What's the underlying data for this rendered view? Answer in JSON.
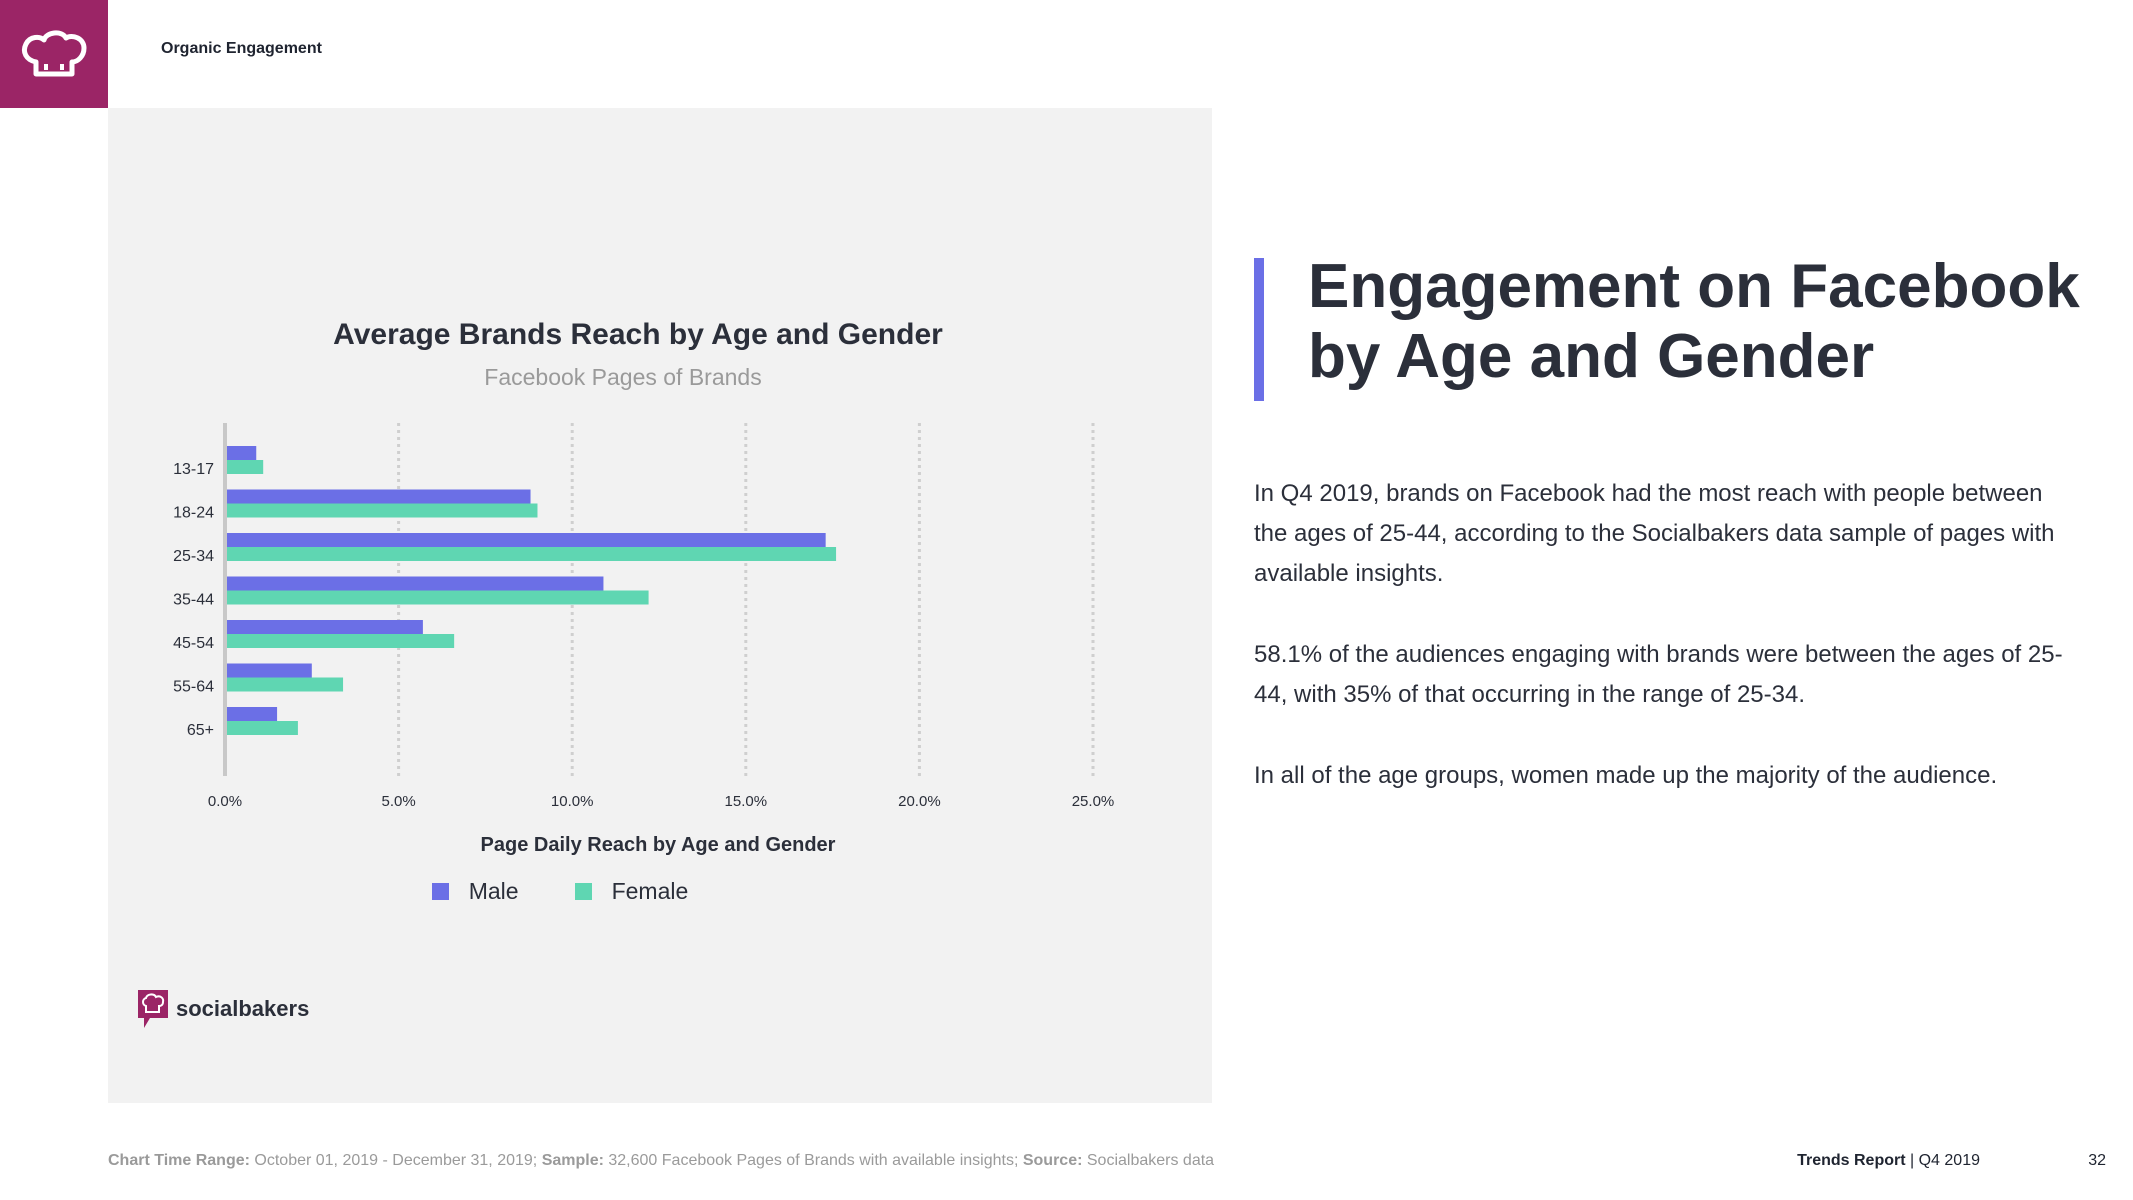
{
  "header": {
    "section_title": "Organic Engagement"
  },
  "brand": {
    "logo_icon": "chef-hat-icon",
    "logo_color": "#9b2566",
    "name": "socialbakers"
  },
  "chart_data": {
    "type": "bar",
    "orientation": "horizontal",
    "title": "Average Brands Reach by Age and Gender",
    "subtitle": "Facebook Pages of Brands",
    "xlabel": "Page Daily Reach by Age and Gender",
    "ylabel": "",
    "categories": [
      "13-17",
      "18-24",
      "25-34",
      "35-44",
      "45-54",
      "55-64",
      "65+"
    ],
    "series": [
      {
        "name": "Male",
        "color": "#6b6fe6",
        "values": [
          0.9,
          8.8,
          17.3,
          10.9,
          5.7,
          2.5,
          1.5
        ]
      },
      {
        "name": "Female",
        "color": "#5fd6b2",
        "values": [
          1.1,
          9.0,
          17.6,
          12.2,
          6.6,
          3.4,
          2.1
        ]
      }
    ],
    "xlim": [
      0,
      25
    ],
    "x_ticks": [
      "0.0%",
      "5.0%",
      "10.0%",
      "15.0%",
      "20.0%",
      "25.0%"
    ],
    "grid": "vertical-dotted",
    "legend": "bottom-center"
  },
  "heading": {
    "line1": "Engagement on Facebook",
    "line2": "by Age and Gender"
  },
  "body": {
    "p1": "In Q4 2019, brands on Facebook had the most reach with people between the ages of 25-44, according to the Socialbakers data sample of pages with available insights.",
    "p2": "58.1% of the audiences engaging with brands were between the ages of 25-44, with 35% of that occurring in the range of 25-34.",
    "p3": "In all of the age groups, women made up the majority of the audience."
  },
  "footer": {
    "range_label": "Chart Time Range:",
    "range_value": " October  01, 2019 - December 31, 2019; ",
    "sample_label": "Sample:",
    "sample_value": " 32,600 Facebook Pages of Brands with available insights; ",
    "source_label": "Source:",
    "source_value": " Socialbakers data",
    "report_name": "Trends Report",
    "report_period": " | Q4 2019",
    "page_number": "32"
  },
  "colors": {
    "accent": "#6b6fe6",
    "panel_bg": "#f2f2f2"
  }
}
